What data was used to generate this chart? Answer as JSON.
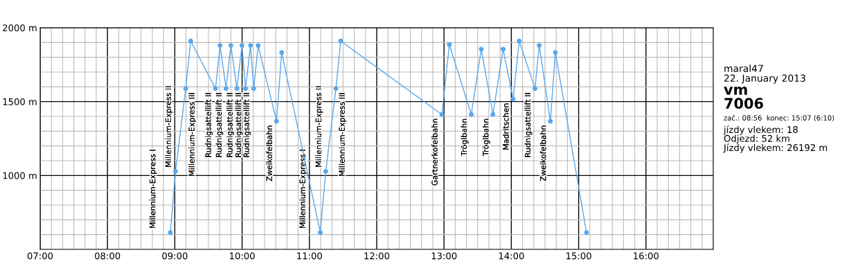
{
  "chart_data": {
    "type": "line",
    "x": [
      8.934,
      9.011,
      9.162,
      9.236,
      9.605,
      9.672,
      9.762,
      9.833,
      9.923,
      9.998,
      10.051,
      10.125,
      10.172,
      10.239,
      10.511,
      10.588,
      11.162,
      11.243,
      11.394,
      11.465,
      12.968,
      13.079,
      13.405,
      13.553,
      13.727,
      13.878,
      14.026,
      14.117,
      14.351,
      14.415,
      14.58,
      14.654,
      15.117
    ],
    "series": [
      {
        "color": "#5aa7ea",
        "values": [
          614,
          1028,
          1588,
          1910,
          1588,
          1880,
          1588,
          1880,
          1588,
          1880,
          1588,
          1880,
          1588,
          1880,
          1367,
          1832,
          614,
          1028,
          1588,
          1910,
          1413,
          1886,
          1413,
          1855,
          1413,
          1855,
          1517,
          1910,
          1588,
          1880,
          1367,
          1832,
          614
        ]
      }
    ],
    "xlim": [
      7,
      17
    ],
    "xticks": [
      {
        "value": 7,
        "label": "07:00"
      },
      {
        "value": 8,
        "label": "08:00"
      },
      {
        "value": 9,
        "label": "09:00"
      },
      {
        "value": 10,
        "label": "10:00"
      },
      {
        "value": 11,
        "label": "11:00"
      },
      {
        "value": 12,
        "label": "12:00"
      },
      {
        "value": 13,
        "label": "13:00"
      },
      {
        "value": 14,
        "label": "14:00"
      },
      {
        "value": 15,
        "label": "15:00"
      },
      {
        "value": 16,
        "label": "16:00"
      }
    ],
    "ylim": [
      500,
      2000
    ],
    "yticks": [
      {
        "value": 1000,
        "label": "1000 m"
      },
      {
        "value": 1500,
        "label": "1500 m"
      },
      {
        "value": 2000,
        "label": "2000 m"
      }
    ],
    "grid": true,
    "marker": "circle",
    "line_style": "solid",
    "legend": false,
    "annotations": [
      {
        "text": "Millennium-Express I",
        "x": 8.934,
        "y": 614
      },
      {
        "text": "Millennium-Express II",
        "x": 9.011,
        "y": 1028
      },
      {
        "text": "Millennium-Express III",
        "x": 9.162,
        "y": 1588
      },
      {
        "text": "Rudnigsattellift II",
        "x": 9.605,
        "y": 1588
      },
      {
        "text": "Rudnigsattellift II",
        "x": 9.762,
        "y": 1588
      },
      {
        "text": "Rudnigsattellift II",
        "x": 9.923,
        "y": 1588
      },
      {
        "text": "Rudnigsattellift II",
        "x": 10.051,
        "y": 1588
      },
      {
        "text": "Rudnigsattellift II",
        "x": 10.172,
        "y": 1588
      },
      {
        "text": "Zweikofelbahn",
        "x": 10.511,
        "y": 1367
      },
      {
        "text": "Millennium-Express I",
        "x": 11.162,
        "y": 614
      },
      {
        "text": "Millennium-Express II",
        "x": 11.243,
        "y": 1028
      },
      {
        "text": "Millennium-Express III",
        "x": 11.394,
        "y": 1588
      },
      {
        "text": "Gartnerkofelbahn",
        "x": 12.968,
        "y": 1413
      },
      {
        "text": "Tröglbahn",
        "x": 13.405,
        "y": 1413
      },
      {
        "text": "Tröglbahn",
        "x": 13.727,
        "y": 1413
      },
      {
        "text": "Madritschen",
        "x": 14.026,
        "y": 1517
      },
      {
        "text": "Rudnigsattellift II",
        "x": 14.351,
        "y": 1588
      },
      {
        "text": "Zweikofelbahn",
        "x": 14.58,
        "y": 1367
      },
      "maral47",
      "22. January 2013",
      "vm",
      "7006",
      "zač.: 08:56  konec: 15:07 (6:10)",
      "jízdy vlekem: 18",
      "Odjezd: 52 km",
      "Jízdy vlekem: 26192 m"
    ]
  }
}
